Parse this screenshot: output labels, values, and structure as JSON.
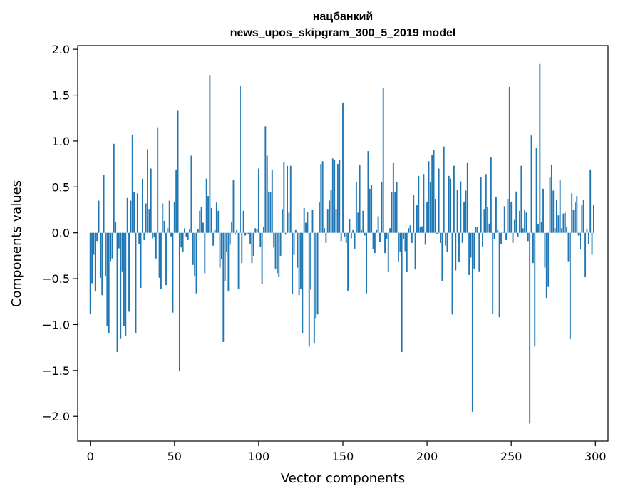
{
  "chart_data": {
    "type": "bar",
    "title": "нацбанкий",
    "subtitle": "news_upos_skipgram_300_5_2019 model",
    "xlabel": "Vector components",
    "ylabel": "Components values",
    "xlim": [
      -7.5,
      307.5
    ],
    "ylim": [
      -2.27,
      2.04
    ],
    "xticks": [
      0,
      50,
      100,
      150,
      200,
      250,
      300
    ],
    "yticks": [
      -2.0,
      -1.5,
      -1.0,
      -0.5,
      0.0,
      0.5,
      1.0,
      1.5,
      2.0
    ],
    "ytick_labels": [
      "−2.0",
      "−1.5",
      "−1.0",
      "−0.5",
      "0.0",
      "0.5",
      "1.0",
      "1.5",
      "2.0"
    ],
    "bar_color": "#1f77b4",
    "grid": false,
    "values": [
      -0.88,
      -0.55,
      -0.24,
      -0.64,
      -0.09,
      0.35,
      -0.49,
      -0.68,
      0.63,
      -0.47,
      -1.02,
      -1.09,
      -0.31,
      -0.28,
      0.97,
      0.12,
      -1.3,
      -0.17,
      -1.15,
      -0.42,
      -1.02,
      -1.12,
      0.38,
      -0.86,
      0.35,
      1.07,
      0.44,
      -1.09,
      0.43,
      -0.12,
      -0.6,
      0.59,
      -0.08,
      0.32,
      0.91,
      0.26,
      0.7,
      -0.06,
      -0.05,
      -0.28,
      1.15,
      -0.49,
      -0.61,
      0.32,
      0.13,
      -0.57,
      0.05,
      0.35,
      -0.04,
      -0.87,
      0.34,
      0.69,
      1.33,
      -1.51,
      -0.16,
      -0.21,
      0.05,
      -0.04,
      -0.08,
      0.04,
      0.84,
      -0.35,
      -0.47,
      -0.66,
      0.04,
      0.24,
      0.28,
      0.11,
      -0.44,
      0.59,
      0.4,
      1.72,
      0.27,
      -0.14,
      0.03,
      0.33,
      0.24,
      -0.38,
      -0.29,
      -1.19,
      -0.53,
      -0.21,
      -0.64,
      -0.13,
      0.12,
      0.58,
      -0.02,
      0.03,
      -0.61,
      1.6,
      -0.33,
      0.24,
      -0.03,
      -0.02,
      -0.01,
      -0.12,
      -0.33,
      -0.25,
      0.05,
      0.04,
      0.7,
      -0.15,
      -0.56,
      0.06,
      1.16,
      0.84,
      0.45,
      0.44,
      0.69,
      -0.16,
      -0.39,
      -0.44,
      -0.48,
      -0.25,
      0.26,
      0.77,
      -0.02,
      0.73,
      0.22,
      0.73,
      -0.67,
      -0.24,
      0.03,
      -0.38,
      -0.68,
      -0.61,
      -1.09,
      0.27,
      0.11,
      0.23,
      -1.24,
      -0.62,
      0.25,
      -1.2,
      -0.93,
      -0.89,
      0.33,
      0.75,
      0.78,
      0.05,
      -0.11,
      0.26,
      0.35,
      0.47,
      0.81,
      0.79,
      0.26,
      0.75,
      0.79,
      -0.09,
      1.42,
      -0.04,
      -0.11,
      -0.63,
      0.15,
      -0.06,
      0.03,
      -0.18,
      0.55,
      0.22,
      0.74,
      0.03,
      0.24,
      -0.03,
      -0.66,
      0.89,
      0.48,
      0.52,
      -0.18,
      -0.22,
      0.03,
      0.18,
      -0.1,
      0.55,
      1.58,
      -0.22,
      -0.07,
      -0.43,
      0.05,
      0.44,
      0.76,
      0.44,
      0.55,
      -0.31,
      -0.21,
      -1.3,
      -0.07,
      -0.2,
      -0.43,
      0.05,
      0.08,
      -0.11,
      0.41,
      -0.4,
      0.3,
      0.62,
      0.06,
      0.07,
      0.64,
      -0.13,
      0.34,
      0.78,
      0.55,
      0.85,
      0.9,
      0.37,
      -0.01,
      0.7,
      -0.11,
      -0.53,
      0.94,
      -0.14,
      -0.21,
      0.62,
      0.59,
      -0.89,
      0.73,
      -0.41,
      0.47,
      -0.32,
      0.56,
      -0.11,
      0.34,
      0.46,
      0.76,
      -0.46,
      -0.27,
      -1.95,
      -0.39,
      0.06,
      0.06,
      -0.42,
      0.61,
      -0.15,
      0.26,
      0.64,
      0.28,
      0.1,
      0.82,
      -0.88,
      -0.07,
      0.39,
      0.03,
      -0.92,
      -0.12,
      0.01,
      0.29,
      -0.08,
      0.37,
      1.59,
      0.34,
      -0.11,
      0.14,
      0.45,
      -0.04,
      0.24,
      0.73,
      0.05,
      0.25,
      0.22,
      -0.09,
      -2.08,
      1.06,
      -0.33,
      -1.24,
      0.93,
      0.09,
      1.84,
      0.12,
      0.48,
      -0.38,
      -0.71,
      -0.59,
      0.6,
      0.74,
      0.46,
      0.05,
      0.36,
      0.19,
      0.58,
      0.05,
      0.21,
      0.22,
      0.06,
      -0.31,
      -1.16,
      0.43,
      0.25,
      0.33,
      0.4,
      -0.03,
      -0.18,
      0.3,
      0.36,
      -0.48,
      0.04,
      -0.12,
      0.69,
      -0.24,
      0.3
    ]
  }
}
